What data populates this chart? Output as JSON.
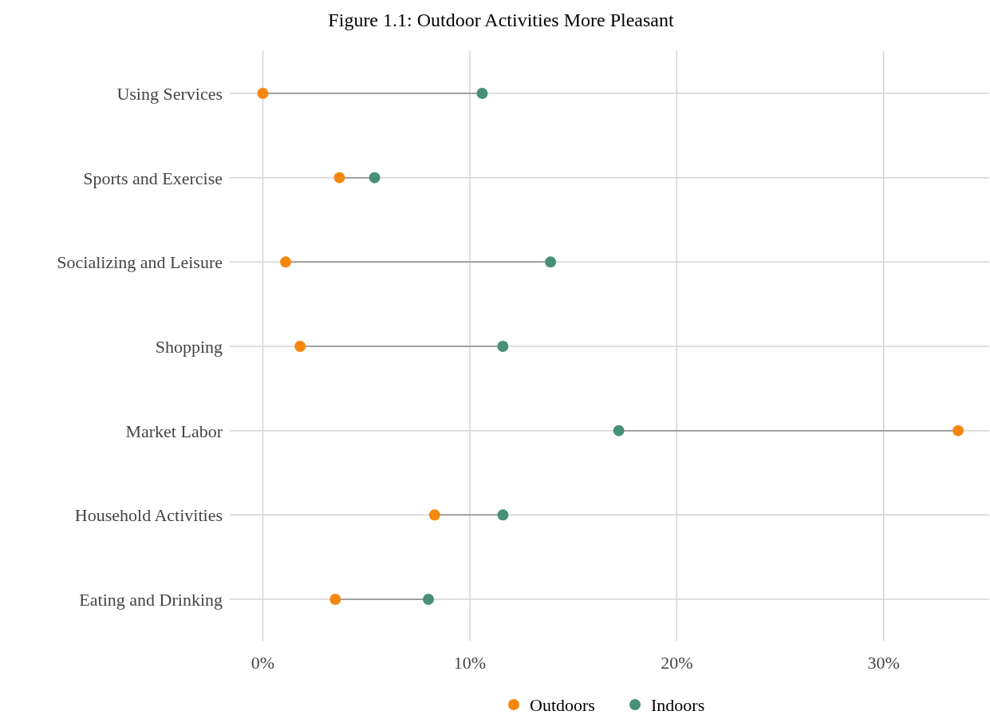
{
  "chart_data": {
    "type": "scatter",
    "orientation": "horizontal",
    "title": "Figure 1.1: Outdoor Activities More Pleasant",
    "categories": [
      "Using Services",
      "Sports and Exercise",
      "Socializing and Leisure",
      "Shopping",
      "Market Labor",
      "Household Activities",
      "Eating and Drinking"
    ],
    "series": [
      {
        "name": "Outdoors",
        "color": "#f5870f",
        "values": [
          0,
          3.7,
          1.1,
          1.8,
          33.6,
          8.3,
          3.5
        ]
      },
      {
        "name": "Indoors",
        "color": "#468f78",
        "values": [
          10.6,
          5.4,
          13.9,
          11.6,
          17.2,
          11.6,
          8.0
        ]
      }
    ],
    "xlim": [
      -1.6,
      35.1
    ],
    "xticks": [
      {
        "value": 0,
        "label": "0%"
      },
      {
        "value": 10,
        "label": "10%"
      },
      {
        "value": 20,
        "label": "20%"
      },
      {
        "value": 30,
        "label": "30%"
      }
    ],
    "grid": true,
    "legend": "bottom",
    "marker": "circle"
  }
}
